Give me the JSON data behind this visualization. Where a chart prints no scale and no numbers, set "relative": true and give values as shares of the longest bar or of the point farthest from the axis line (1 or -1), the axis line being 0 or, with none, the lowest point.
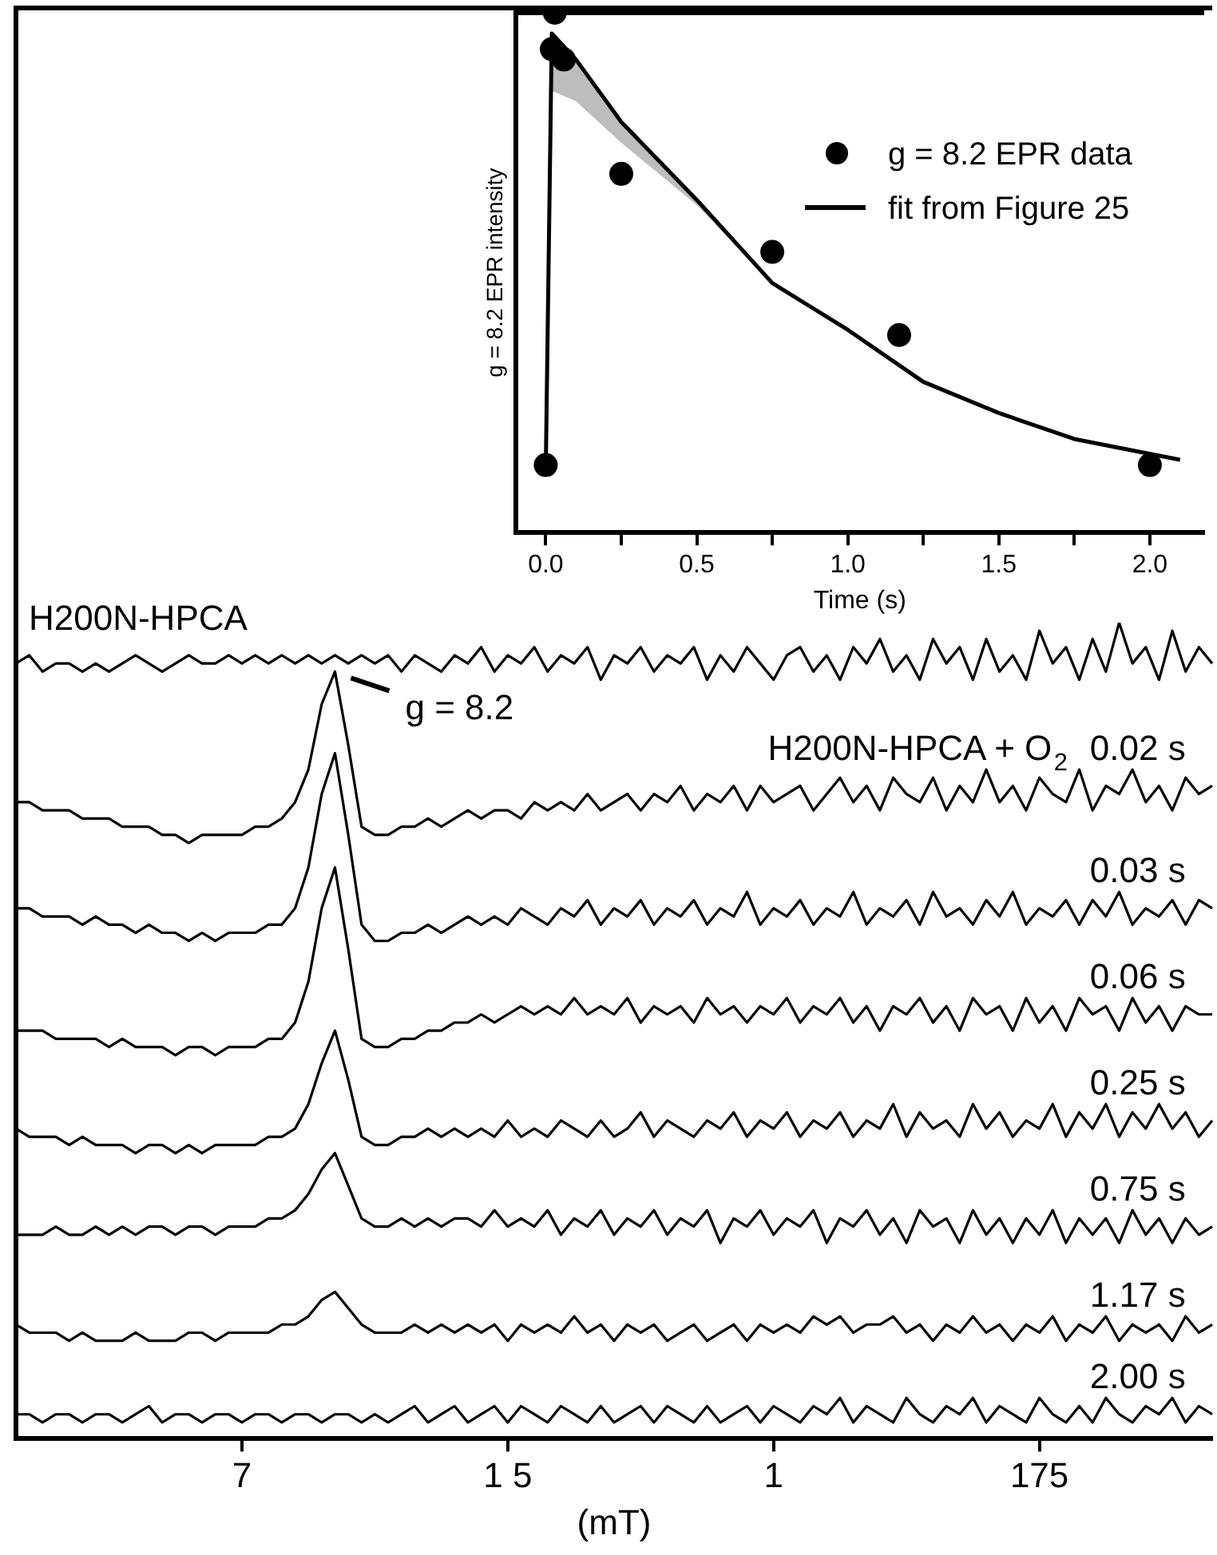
{
  "chart_data": [
    {
      "type": "line",
      "relative": true,
      "xlabel": "(mT)",
      "tick_labels": "x",
      "categories": [
        null,
        null,
        null,
        null,
        null,
        null,
        null,
        null,
        null,
        null,
        null,
        null,
        null,
        null,
        null,
        null,
        null,
        "7",
        null,
        null,
        null,
        null,
        null,
        null,
        null,
        null,
        null,
        null,
        null,
        null,
        null,
        null,
        null,
        null,
        null,
        null,
        null,
        "1 5",
        null,
        null,
        null,
        null,
        null,
        null,
        null,
        null,
        null,
        null,
        null,
        null,
        null,
        null,
        null,
        null,
        null,
        null,
        null,
        "1",
        null,
        null,
        null,
        null,
        null,
        null,
        null,
        null,
        null,
        null,
        null,
        null,
        null,
        null,
        null,
        null,
        null,
        null,
        null,
        "175",
        null,
        null,
        null,
        null,
        null,
        null,
        null,
        null,
        null,
        null,
        null,
        null,
        null
      ],
      "annotations": [
        "H200N-HPCA + O$_{2}$",
        "g = 8.2"
      ],
      "series": [
        {
          "name": "H200N-HPCA",
          "color": "#000000",
          "values": [
            0.95,
            0.96,
            0.94,
            0.95,
            0.95,
            0.94,
            0.95,
            0.94,
            0.95,
            0.96,
            0.95,
            0.94,
            0.95,
            0.96,
            0.95,
            0.95,
            0.96,
            0.95,
            0.96,
            0.95,
            0.96,
            0.95,
            0.96,
            0.95,
            0.96,
            0.95,
            0.96,
            0.95,
            0.96,
            0.94,
            0.96,
            0.95,
            0.94,
            0.96,
            0.95,
            0.97,
            0.94,
            0.96,
            0.95,
            0.97,
            0.94,
            0.96,
            0.95,
            0.97,
            0.93,
            0.96,
            0.95,
            0.97,
            0.94,
            0.96,
            0.95,
            0.97,
            0.93,
            0.96,
            0.94,
            0.97,
            0.95,
            0.93,
            0.96,
            0.97,
            0.94,
            0.96,
            0.93,
            0.97,
            0.95,
            0.98,
            0.94,
            0.96,
            0.93,
            0.98,
            0.95,
            0.97,
            0.93,
            0.98,
            0.94,
            0.96,
            0.93,
            0.99,
            0.95,
            0.97,
            0.93,
            0.98,
            0.94,
            1.0,
            0.95,
            0.97,
            0.93,
            0.99,
            0.94,
            0.97,
            0.95
          ]
        },
        {
          "name": "0.02 s",
          "color": "#000000",
          "values": [
            0.78,
            0.78,
            0.77,
            0.77,
            0.77,
            0.76,
            0.76,
            0.76,
            0.75,
            0.75,
            0.75,
            0.74,
            0.74,
            0.73,
            0.74,
            0.74,
            0.74,
            0.74,
            0.75,
            0.75,
            0.76,
            0.78,
            0.82,
            0.9,
            0.94,
            0.85,
            0.75,
            0.74,
            0.74,
            0.75,
            0.75,
            0.76,
            0.75,
            0.76,
            0.77,
            0.76,
            0.77,
            0.77,
            0.76,
            0.78,
            0.77,
            0.78,
            0.77,
            0.79,
            0.77,
            0.78,
            0.79,
            0.77,
            0.79,
            0.78,
            0.8,
            0.77,
            0.79,
            0.78,
            0.8,
            0.77,
            0.8,
            0.78,
            0.79,
            0.8,
            0.77,
            0.79,
            0.81,
            0.78,
            0.8,
            0.77,
            0.81,
            0.79,
            0.78,
            0.81,
            0.77,
            0.8,
            0.78,
            0.82,
            0.78,
            0.8,
            0.77,
            0.81,
            0.79,
            0.78,
            0.82,
            0.77,
            0.8,
            0.79,
            0.82,
            0.78,
            0.8,
            0.77,
            0.81,
            0.79,
            0.8
          ]
        },
        {
          "name": "0.03 s",
          "color": "#000000",
          "values": [
            0.65,
            0.65,
            0.64,
            0.64,
            0.64,
            0.63,
            0.64,
            0.63,
            0.63,
            0.62,
            0.63,
            0.62,
            0.62,
            0.61,
            0.62,
            0.61,
            0.62,
            0.62,
            0.62,
            0.63,
            0.63,
            0.65,
            0.7,
            0.79,
            0.84,
            0.74,
            0.63,
            0.61,
            0.61,
            0.62,
            0.62,
            0.63,
            0.62,
            0.63,
            0.64,
            0.63,
            0.64,
            0.63,
            0.65,
            0.64,
            0.63,
            0.65,
            0.64,
            0.66,
            0.63,
            0.65,
            0.64,
            0.66,
            0.63,
            0.65,
            0.64,
            0.66,
            0.63,
            0.65,
            0.64,
            0.67,
            0.63,
            0.65,
            0.64,
            0.66,
            0.63,
            0.65,
            0.64,
            0.67,
            0.63,
            0.65,
            0.64,
            0.66,
            0.63,
            0.67,
            0.64,
            0.65,
            0.63,
            0.66,
            0.64,
            0.67,
            0.63,
            0.65,
            0.64,
            0.66,
            0.63,
            0.66,
            0.64,
            0.67,
            0.63,
            0.65,
            0.64,
            0.66,
            0.63,
            0.66,
            0.65
          ]
        },
        {
          "name": "0.06 s",
          "color": "#000000",
          "values": [
            0.5,
            0.5,
            0.5,
            0.49,
            0.49,
            0.49,
            0.49,
            0.48,
            0.49,
            0.48,
            0.48,
            0.48,
            0.47,
            0.48,
            0.48,
            0.47,
            0.48,
            0.48,
            0.48,
            0.49,
            0.49,
            0.51,
            0.56,
            0.65,
            0.7,
            0.6,
            0.49,
            0.48,
            0.48,
            0.49,
            0.49,
            0.5,
            0.5,
            0.51,
            0.51,
            0.52,
            0.51,
            0.52,
            0.53,
            0.52,
            0.53,
            0.52,
            0.54,
            0.52,
            0.53,
            0.52,
            0.54,
            0.51,
            0.53,
            0.52,
            0.53,
            0.51,
            0.54,
            0.52,
            0.53,
            0.51,
            0.53,
            0.52,
            0.54,
            0.51,
            0.53,
            0.52,
            0.54,
            0.51,
            0.53,
            0.5,
            0.53,
            0.52,
            0.54,
            0.51,
            0.53,
            0.5,
            0.54,
            0.52,
            0.53,
            0.5,
            0.54,
            0.51,
            0.53,
            0.5,
            0.54,
            0.52,
            0.53,
            0.5,
            0.54,
            0.51,
            0.53,
            0.5,
            0.53,
            0.52,
            0.52
          ]
        },
        {
          "name": "0.25 s",
          "color": "#000000",
          "values": [
            0.38,
            0.37,
            0.37,
            0.37,
            0.36,
            0.37,
            0.36,
            0.36,
            0.36,
            0.35,
            0.36,
            0.36,
            0.35,
            0.36,
            0.35,
            0.36,
            0.36,
            0.36,
            0.36,
            0.37,
            0.37,
            0.38,
            0.41,
            0.46,
            0.5,
            0.44,
            0.37,
            0.36,
            0.36,
            0.37,
            0.37,
            0.38,
            0.37,
            0.38,
            0.37,
            0.38,
            0.37,
            0.39,
            0.37,
            0.38,
            0.37,
            0.39,
            0.38,
            0.37,
            0.39,
            0.37,
            0.38,
            0.4,
            0.37,
            0.39,
            0.38,
            0.37,
            0.39,
            0.38,
            0.4,
            0.37,
            0.39,
            0.38,
            0.4,
            0.37,
            0.39,
            0.38,
            0.4,
            0.37,
            0.39,
            0.38,
            0.41,
            0.37,
            0.4,
            0.38,
            0.39,
            0.37,
            0.41,
            0.38,
            0.4,
            0.37,
            0.39,
            0.38,
            0.41,
            0.37,
            0.4,
            0.38,
            0.41,
            0.37,
            0.4,
            0.38,
            0.41,
            0.38,
            0.4,
            0.37,
            0.39
          ]
        },
        {
          "name": "0.75 s",
          "color": "#000000",
          "values": [
            0.25,
            0.25,
            0.25,
            0.26,
            0.25,
            0.25,
            0.26,
            0.25,
            0.26,
            0.25,
            0.26,
            0.26,
            0.25,
            0.26,
            0.26,
            0.25,
            0.26,
            0.26,
            0.26,
            0.27,
            0.27,
            0.28,
            0.3,
            0.33,
            0.35,
            0.31,
            0.27,
            0.26,
            0.26,
            0.27,
            0.26,
            0.27,
            0.26,
            0.27,
            0.27,
            0.26,
            0.28,
            0.26,
            0.27,
            0.26,
            0.28,
            0.25,
            0.27,
            0.26,
            0.28,
            0.25,
            0.27,
            0.26,
            0.28,
            0.25,
            0.27,
            0.26,
            0.28,
            0.24,
            0.27,
            0.26,
            0.28,
            0.25,
            0.27,
            0.26,
            0.28,
            0.24,
            0.27,
            0.26,
            0.28,
            0.25,
            0.27,
            0.24,
            0.28,
            0.26,
            0.27,
            0.24,
            0.28,
            0.25,
            0.27,
            0.24,
            0.27,
            0.25,
            0.28,
            0.24,
            0.27,
            0.25,
            0.27,
            0.24,
            0.28,
            0.25,
            0.27,
            0.24,
            0.27,
            0.25,
            0.26
          ]
        },
        {
          "name": "1.17 s",
          "color": "#000000",
          "values": [
            0.14,
            0.13,
            0.13,
            0.13,
            0.12,
            0.13,
            0.12,
            0.12,
            0.12,
            0.13,
            0.12,
            0.12,
            0.12,
            0.13,
            0.13,
            0.12,
            0.13,
            0.13,
            0.13,
            0.13,
            0.14,
            0.14,
            0.15,
            0.17,
            0.18,
            0.16,
            0.14,
            0.13,
            0.13,
            0.13,
            0.14,
            0.13,
            0.14,
            0.13,
            0.14,
            0.13,
            0.14,
            0.12,
            0.14,
            0.13,
            0.14,
            0.13,
            0.15,
            0.13,
            0.14,
            0.12,
            0.14,
            0.13,
            0.14,
            0.12,
            0.13,
            0.14,
            0.12,
            0.13,
            0.14,
            0.12,
            0.14,
            0.13,
            0.14,
            0.13,
            0.15,
            0.14,
            0.15,
            0.13,
            0.14,
            0.14,
            0.15,
            0.13,
            0.14,
            0.12,
            0.14,
            0.13,
            0.15,
            0.13,
            0.14,
            0.12,
            0.14,
            0.13,
            0.15,
            0.12,
            0.14,
            0.13,
            0.15,
            0.12,
            0.14,
            0.13,
            0.14,
            0.12,
            0.15,
            0.13,
            0.14
          ]
        },
        {
          "name": "2.00 s",
          "color": "#000000",
          "values": [
            0.03,
            0.03,
            0.02,
            0.03,
            0.03,
            0.02,
            0.03,
            0.03,
            0.02,
            0.03,
            0.04,
            0.02,
            0.03,
            0.03,
            0.02,
            0.03,
            0.03,
            0.02,
            0.03,
            0.03,
            0.02,
            0.03,
            0.03,
            0.02,
            0.03,
            0.03,
            0.02,
            0.03,
            0.02,
            0.03,
            0.04,
            0.02,
            0.03,
            0.04,
            0.02,
            0.03,
            0.04,
            0.02,
            0.04,
            0.03,
            0.02,
            0.04,
            0.03,
            0.02,
            0.04,
            0.02,
            0.03,
            0.04,
            0.02,
            0.04,
            0.03,
            0.02,
            0.04,
            0.02,
            0.03,
            0.04,
            0.02,
            0.04,
            0.03,
            0.02,
            0.04,
            0.03,
            0.05,
            0.02,
            0.04,
            0.03,
            0.02,
            0.05,
            0.03,
            0.02,
            0.04,
            0.03,
            0.05,
            0.02,
            0.04,
            0.03,
            0.02,
            0.05,
            0.03,
            0.02,
            0.04,
            0.02,
            0.05,
            0.03,
            0.02,
            0.04,
            0.03,
            0.05,
            0.02,
            0.04,
            0.03
          ]
        }
      ]
    },
    {
      "type": "scatter",
      "relative": true,
      "xlabel": "Time (s)",
      "ylabel": "g = 8.2 EPR intensity",
      "tick_labels": "x",
      "legend": "top right",
      "xlim": [
        -0.1,
        2.18
      ],
      "xticks": [
        {
          "value": 0,
          "label": "0.0"
        },
        {
          "value": 0.25,
          "label": null
        },
        {
          "value": 0.5,
          "label": "0.5"
        },
        {
          "value": 0.75,
          "label": null
        },
        {
          "value": 1,
          "label": "1.0"
        },
        {
          "value": 1.25,
          "label": null
        },
        {
          "value": 1.5,
          "label": "1.5"
        },
        {
          "value": 1.75,
          "label": null
        },
        {
          "value": 2,
          "label": "2.0"
        }
      ],
      "series": [
        {
          "name": "g = 8.2 EPR data",
          "type": "scatter",
          "marker": "circle",
          "color": "#000000",
          "x": [
            0,
            0.02,
            0.03,
            0.06,
            0.25,
            0.75,
            1.17,
            2.0
          ],
          "values": [
            0.13,
            0.93,
            1.0,
            0.91,
            0.69,
            0.54,
            0.38,
            0.13
          ]
        },
        {
          "name": "fit from Figure 25",
          "type": "line",
          "color": "#000000",
          "x": [
            0,
            0.02,
            0.1,
            0.25,
            0.5,
            0.75,
            1.0,
            1.25,
            1.5,
            1.75,
            2.1
          ],
          "values": [
            0.12,
            0.96,
            0.91,
            0.79,
            0.64,
            0.48,
            0.39,
            0.29,
            0.23,
            0.18,
            0.14
          ],
          "lower": [
            0.12,
            0.85,
            0.83,
            0.75,
            0.63,
            0.48,
            0.39,
            0.29,
            0.23,
            0.18,
            0.14
          ],
          "upper": [
            0.12,
            0.96,
            0.91,
            0.79,
            0.64,
            0.48,
            0.39,
            0.29,
            0.23,
            0.18,
            0.14
          ]
        }
      ]
    }
  ]
}
